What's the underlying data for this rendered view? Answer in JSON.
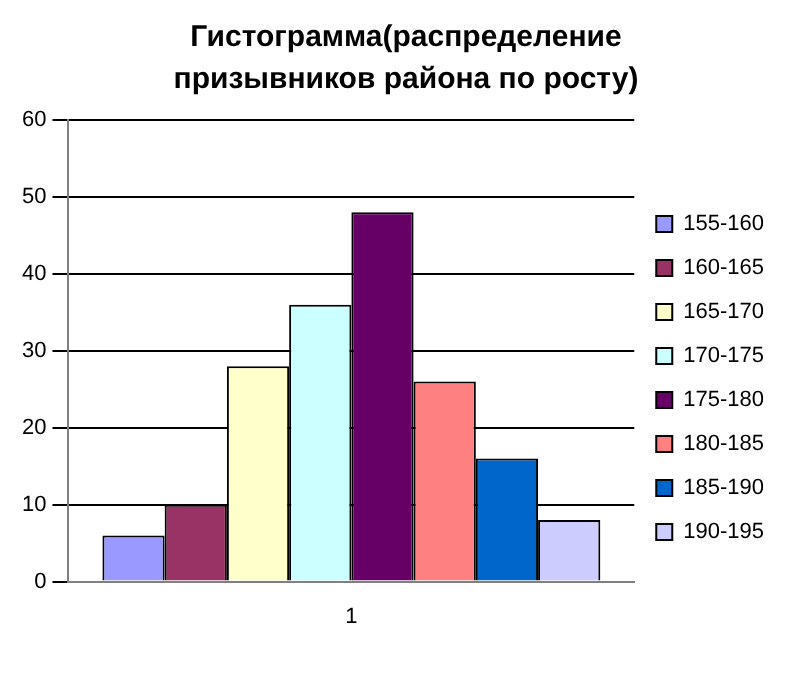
{
  "chart_data": {
    "type": "bar",
    "title": "Гистограмма(распределение призывников района по росту)",
    "categories": [
      "1"
    ],
    "series": [
      {
        "name": "155-160",
        "color": "#9999ff",
        "values": [
          6
        ]
      },
      {
        "name": "160-165",
        "color": "#993366",
        "values": [
          10
        ]
      },
      {
        "name": "165-170",
        "color": "#ffffcc",
        "values": [
          28
        ]
      },
      {
        "name": "170-175",
        "color": "#ccffff",
        "values": [
          36
        ]
      },
      {
        "name": "175-180",
        "color": "#660066",
        "values": [
          48
        ]
      },
      {
        "name": "180-185",
        "color": "#ff8080",
        "values": [
          26
        ]
      },
      {
        "name": "185-190",
        "color": "#0066cc",
        "values": [
          16
        ]
      },
      {
        "name": "190-195",
        "color": "#ccccff",
        "values": [
          8
        ]
      }
    ],
    "ylim": [
      0,
      60
    ],
    "yticks": [
      0,
      10,
      20,
      30,
      40,
      50,
      60
    ],
    "grid": "y",
    "legend": "right"
  }
}
